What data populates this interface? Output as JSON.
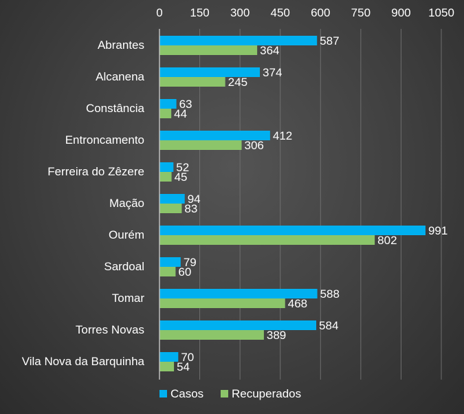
{
  "chart_data": {
    "type": "bar",
    "orientation": "horizontal",
    "categories": [
      "Abrantes",
      "Alcanena",
      "Constância",
      "Entroncamento",
      "Ferreira do Zêzere",
      "Mação",
      "Ourém",
      "Sardoal",
      "Tomar",
      "Torres Novas",
      "Vila Nova da Barquinha"
    ],
    "series": [
      {
        "name": "Casos",
        "color": "#00b0f0",
        "values": [
          587,
          374,
          63,
          412,
          52,
          94,
          991,
          79,
          588,
          584,
          70
        ]
      },
      {
        "name": "Recuperados",
        "color": "#8cc56a",
        "values": [
          364,
          245,
          44,
          306,
          45,
          83,
          802,
          60,
          468,
          389,
          54
        ]
      }
    ],
    "xlim": [
      0,
      1050
    ],
    "x_ticks": [
      "0",
      "150",
      "300",
      "450",
      "600",
      "750",
      "900",
      "1050"
    ],
    "x_axis_position": "top",
    "grid": true,
    "legend_position": "bottom",
    "title": "",
    "xlabel": "",
    "ylabel": ""
  }
}
